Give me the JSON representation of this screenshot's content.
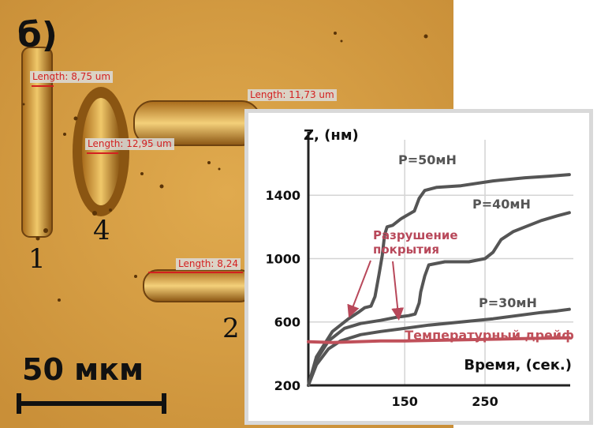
{
  "panel_label": "б)",
  "scale_bar": {
    "label": "50 мкм"
  },
  "measurements": [
    {
      "id": "m1",
      "text": "Length: 8,75 um"
    },
    {
      "id": "m2",
      "text": "Length: 11,73 um"
    },
    {
      "id": "m3",
      "text": "Length: 12,95 um"
    },
    {
      "id": "m4",
      "text": "Length: 8,24"
    }
  ],
  "track_labels": [
    "1",
    "4",
    "2"
  ],
  "colors": {
    "background": "#d29a3e",
    "series": "#555555",
    "drift": "#c0505a",
    "annotation": "#b8485a",
    "measure": "#d32020",
    "grid": "#d4d4d4"
  },
  "chart_data": {
    "type": "line",
    "ylabel": "Z, (нм)",
    "xlabel": "Время, (сек.)",
    "xlim": [
      30,
      360
    ],
    "ylim": [
      200,
      1700
    ],
    "x_ticks": [
      150,
      250
    ],
    "y_ticks": [
      200,
      600,
      1000,
      1400
    ],
    "grid": true,
    "series": [
      {
        "name": "P=50мН",
        "color": "#555555",
        "points": [
          [
            30,
            200
          ],
          [
            40,
            380
          ],
          [
            60,
            540
          ],
          [
            80,
            620
          ],
          [
            92,
            660
          ],
          [
            100,
            690
          ],
          [
            108,
            700
          ],
          [
            113,
            760
          ],
          [
            118,
            900
          ],
          [
            122,
            1020
          ],
          [
            125,
            1150
          ],
          [
            128,
            1200
          ],
          [
            135,
            1210
          ],
          [
            145,
            1250
          ],
          [
            155,
            1280
          ],
          [
            162,
            1300
          ],
          [
            168,
            1380
          ],
          [
            175,
            1430
          ],
          [
            190,
            1450
          ],
          [
            220,
            1460
          ],
          [
            260,
            1490
          ],
          [
            300,
            1510
          ],
          [
            330,
            1520
          ],
          [
            355,
            1530
          ]
        ]
      },
      {
        "name": "P=40мН",
        "color": "#555555",
        "points": [
          [
            30,
            200
          ],
          [
            40,
            360
          ],
          [
            55,
            480
          ],
          [
            75,
            560
          ],
          [
            95,
            590
          ],
          [
            120,
            610
          ],
          [
            140,
            630
          ],
          [
            155,
            640
          ],
          [
            163,
            650
          ],
          [
            168,
            720
          ],
          [
            170,
            790
          ],
          [
            175,
            890
          ],
          [
            180,
            960
          ],
          [
            200,
            980
          ],
          [
            230,
            980
          ],
          [
            250,
            1000
          ],
          [
            260,
            1040
          ],
          [
            270,
            1120
          ],
          [
            285,
            1170
          ],
          [
            300,
            1200
          ],
          [
            320,
            1240
          ],
          [
            340,
            1270
          ],
          [
            355,
            1290
          ]
        ]
      },
      {
        "name": "P=30мН",
        "color": "#555555",
        "points": [
          [
            30,
            200
          ],
          [
            40,
            330
          ],
          [
            55,
            430
          ],
          [
            70,
            480
          ],
          [
            95,
            520
          ],
          [
            120,
            540
          ],
          [
            150,
            560
          ],
          [
            180,
            580
          ],
          [
            220,
            600
          ],
          [
            260,
            620
          ],
          [
            290,
            640
          ],
          [
            320,
            660
          ],
          [
            340,
            670
          ],
          [
            355,
            680
          ]
        ]
      },
      {
        "name": "Температурный дрейф",
        "color": "#c0505a",
        "points": [
          [
            30,
            475
          ],
          [
            60,
            470
          ],
          [
            90,
            475
          ],
          [
            120,
            480
          ],
          [
            150,
            480
          ],
          [
            200,
            485
          ],
          [
            250,
            490
          ],
          [
            300,
            495
          ],
          [
            355,
            500
          ]
        ]
      }
    ],
    "annotations": [
      {
        "text": "Разрушение",
        "line2": "покрытия"
      }
    ]
  }
}
